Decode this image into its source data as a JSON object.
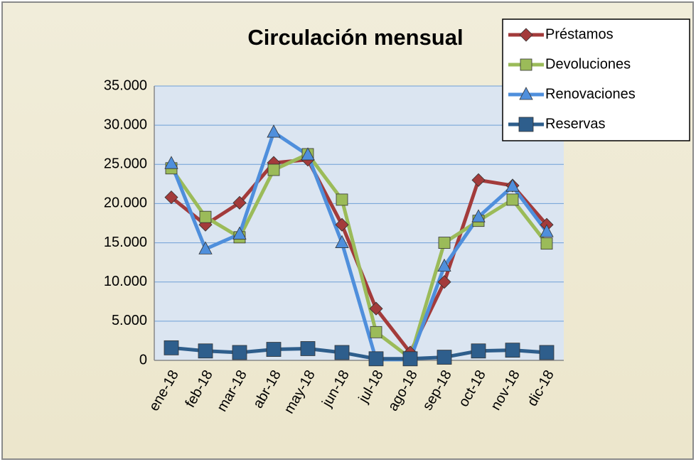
{
  "chart_data": {
    "type": "line",
    "title": "Circulación mensual",
    "categories": [
      "ene-18",
      "feb-18",
      "mar-18",
      "abr-18",
      "may-18",
      "jun-18",
      "jul-18",
      "ago-18",
      "sep-18",
      "oct-18",
      "nov-18",
      "dic-18"
    ],
    "series": [
      {
        "name": "Préstamos",
        "color": "#a33b3b",
        "marker": "diamond",
        "values": [
          20800,
          17300,
          20100,
          25200,
          25600,
          17300,
          6600,
          1000,
          10000,
          23000,
          22300,
          17300
        ]
      },
      {
        "name": "Devoluciones",
        "color": "#9bbb59",
        "marker": "square",
        "values": [
          24500,
          18300,
          15700,
          24300,
          26300,
          20500,
          3600,
          300,
          15000,
          17800,
          20500,
          14900
        ]
      },
      {
        "name": "Renovaciones",
        "color": "#4f8fdc",
        "marker": "triangle",
        "values": [
          25100,
          14200,
          16100,
          29100,
          26200,
          15000,
          100,
          100,
          12000,
          18300,
          22200,
          16400
        ]
      },
      {
        "name": "Reservas",
        "color": "#2e5e8c",
        "marker": "bigsquare",
        "values": [
          1600,
          1200,
          1000,
          1400,
          1500,
          1000,
          200,
          200,
          400,
          1200,
          1300,
          1000
        ]
      }
    ],
    "ylim": [
      0,
      35000
    ],
    "yticks": [
      0,
      {
        "value": 5000,
        "label": "5.000"
      },
      {
        "value": 10000,
        "label": "10.000"
      },
      {
        "value": 15000,
        "label": "15.000"
      },
      {
        "value": 20000,
        "label": "20.000"
      },
      {
        "value": 25000,
        "label": "25.000"
      },
      {
        "value": 30000,
        "label": "30.000"
      },
      {
        "value": 35000,
        "label": "35.000"
      }
    ],
    "grid": true,
    "legend": "top-right"
  }
}
